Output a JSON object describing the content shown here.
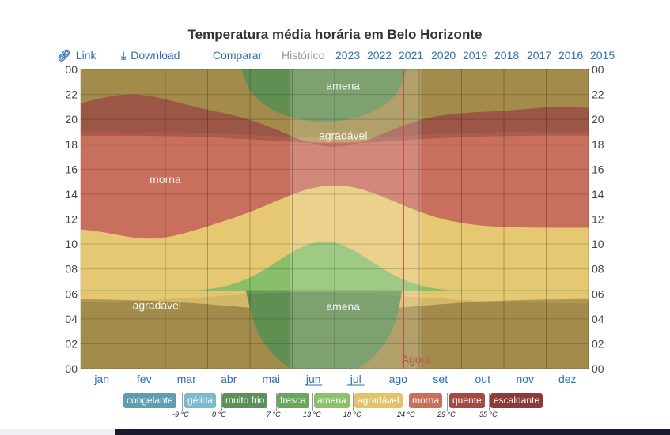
{
  "title": "Temperatura média horária em Belo Horizonte",
  "toolbar": {
    "link_label": "Link",
    "download_label": "Download",
    "compare_label": "Comparar",
    "history_label": "Histórico",
    "years": [
      "2023",
      "2022",
      "2021",
      "2020",
      "2019",
      "2018",
      "2017",
      "2016",
      "2015"
    ]
  },
  "chart_data": {
    "type": "heatmap",
    "x_months": [
      "jan",
      "fev",
      "mar",
      "abr",
      "mai",
      "jun",
      "jul",
      "ago",
      "set",
      "out",
      "nov",
      "dez"
    ],
    "y_hours": [
      "00",
      "02",
      "04",
      "06",
      "08",
      "10",
      "12",
      "14",
      "16",
      "18",
      "20",
      "22",
      "00"
    ],
    "ylim": [
      0,
      24
    ],
    "now_label": "Agora",
    "now_date_fraction": 0.636,
    "region_labels": [
      {
        "text": "amena",
        "month_pos": 6.2,
        "hour": 22.7
      },
      {
        "text": "agradável",
        "month_pos": 6.2,
        "hour": 18.7
      },
      {
        "text": "morna",
        "month_pos": 2.0,
        "hour": 15.2
      },
      {
        "text": "agradável",
        "month_pos": 1.8,
        "hour": 5.1
      },
      {
        "text": "amena",
        "month_pos": 6.2,
        "hour": 5.0
      }
    ],
    "legend": [
      {
        "name": "congelante",
        "threshold": "-9 °C",
        "color": "#5e9eb0"
      },
      {
        "name": "gélida",
        "threshold": "0 °C",
        "color": "#7cb9cf"
      },
      {
        "name": "muito frio",
        "threshold": "7 °C",
        "color": "#5e8e5a"
      },
      {
        "name": "fresca",
        "threshold": "13 °C",
        "color": "#6aa65d"
      },
      {
        "name": "amena",
        "threshold": "18 °C",
        "color": "#8cc06c"
      },
      {
        "name": "agradável",
        "threshold": "24 °C",
        "color": "#e2c36b"
      },
      {
        "name": "morna",
        "threshold": "29 °C",
        "color": "#c8705c"
      },
      {
        "name": "quente",
        "threshold": "35 °C",
        "color": "#a24b43"
      },
      {
        "name": "escaldante",
        "threshold": "",
        "color": "#8c3a3a"
      }
    ],
    "colors": {
      "night_base": "#b09752",
      "amena": "#89bf69",
      "agradavel": "#e6c873",
      "morna": "#c86f5e",
      "quente": "#a8544b",
      "night_amena": "#6a9b58"
    }
  }
}
